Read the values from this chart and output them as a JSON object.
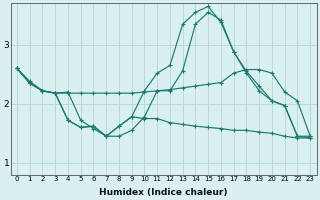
{
  "xlabel": "Humidex (Indice chaleur)",
  "background_color": "#daf0f0",
  "grid_color": "#b8dada",
  "line_color": "#1a7a6e",
  "xlim": [
    -0.5,
    23.5
  ],
  "ylim": [
    0.8,
    3.7
  ],
  "yticks": [
    1,
    2,
    3
  ],
  "xticks": [
    0,
    1,
    2,
    3,
    4,
    5,
    6,
    7,
    8,
    9,
    10,
    11,
    12,
    13,
    14,
    15,
    16,
    17,
    18,
    19,
    20,
    21,
    22,
    23
  ],
  "lines": [
    {
      "x": [
        0,
        1,
        2,
        3,
        4,
        5,
        6,
        7,
        8,
        9,
        10,
        11,
        12,
        13,
        14,
        15,
        16,
        17,
        18,
        19,
        20,
        21,
        22,
        23
      ],
      "y": [
        2.6,
        2.38,
        2.22,
        2.18,
        2.18,
        2.18,
        2.18,
        2.18,
        2.18,
        2.18,
        2.2,
        2.22,
        2.24,
        2.27,
        2.3,
        2.33,
        2.36,
        2.52,
        2.58,
        2.58,
        2.52,
        2.2,
        2.05,
        1.45
      ]
    },
    {
      "x": [
        0,
        1,
        2,
        3,
        4,
        5,
        6,
        7,
        8,
        9,
        10,
        11,
        12,
        13,
        14,
        15,
        16,
        17,
        18,
        19,
        20,
        21,
        22,
        23
      ],
      "y": [
        2.6,
        2.35,
        2.22,
        2.18,
        2.2,
        1.72,
        1.58,
        1.45,
        1.45,
        1.55,
        1.78,
        2.22,
        2.22,
        2.56,
        3.35,
        3.55,
        3.42,
        2.88,
        2.52,
        2.22,
        2.05,
        1.97,
        1.45,
        1.45
      ]
    },
    {
      "x": [
        0,
        1,
        2,
        3,
        4,
        5,
        6,
        7,
        8,
        9,
        10,
        11,
        12,
        13,
        14,
        15,
        16,
        17,
        18,
        19,
        20,
        21,
        22,
        23
      ],
      "y": [
        2.6,
        2.35,
        2.22,
        2.18,
        1.72,
        1.6,
        1.62,
        1.45,
        1.62,
        1.78,
        1.75,
        1.75,
        1.68,
        1.65,
        1.62,
        1.6,
        1.58,
        1.55,
        1.55,
        1.52,
        1.5,
        1.45,
        1.42,
        1.42
      ]
    },
    {
      "x": [
        0,
        1,
        2,
        3,
        4,
        5,
        6,
        7,
        8,
        9,
        10,
        11,
        12,
        13,
        14,
        15,
        16,
        17,
        18,
        19,
        20,
        21,
        22,
        23
      ],
      "y": [
        2.6,
        2.35,
        2.22,
        2.18,
        1.72,
        1.6,
        1.62,
        1.45,
        1.62,
        1.78,
        2.22,
        2.52,
        2.65,
        3.35,
        3.55,
        3.65,
        3.38,
        2.88,
        2.55,
        2.3,
        2.05,
        1.97,
        1.45,
        1.42
      ]
    }
  ]
}
